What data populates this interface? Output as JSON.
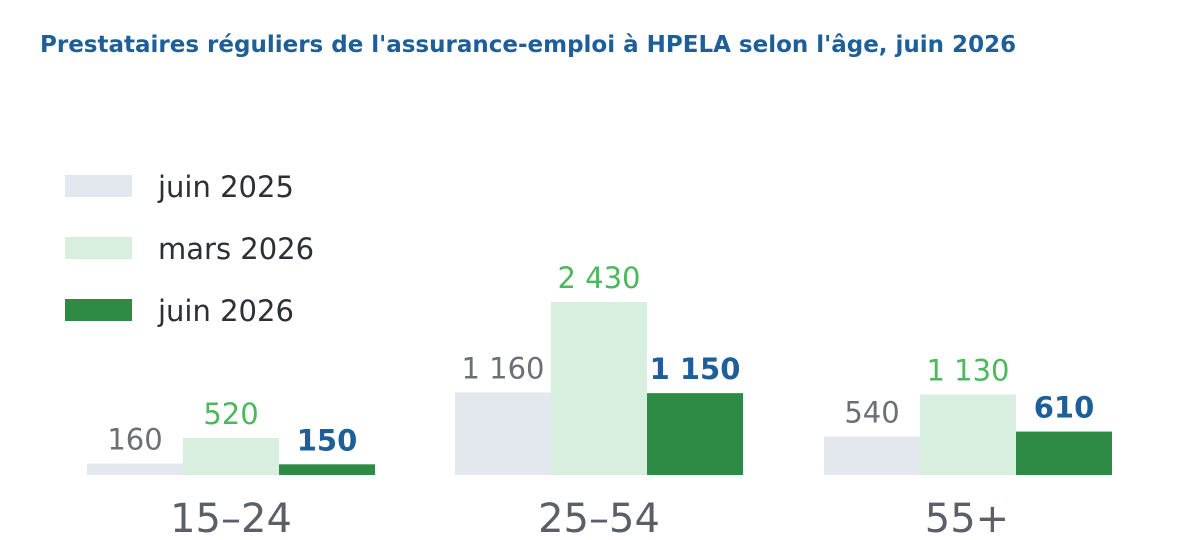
{
  "chart_data": {
    "type": "bar",
    "title": "Prestataires réguliers de l'assurance-emploi à HPELA selon l'âge, juin 2026",
    "categories": [
      "15–24",
      "25–54",
      "55+"
    ],
    "series": [
      {
        "name": "juin 2025",
        "values": [
          160,
          1160,
          540
        ],
        "labels": [
          "160",
          "1 160",
          "540"
        ],
        "color": "#e3e8ef",
        "label_color": "#6b6f76",
        "label_bold": false
      },
      {
        "name": "mars 2026",
        "values": [
          520,
          2430,
          1130
        ],
        "labels": [
          "520",
          "2 430",
          "1 130"
        ],
        "color": "#d8efe0",
        "label_color": "#4cb85c",
        "label_bold": false
      },
      {
        "name": "juin 2026",
        "values": [
          150,
          1150,
          610
        ],
        "labels": [
          "150",
          "1 150",
          "610"
        ],
        "color": "#2e8b45",
        "label_color": "#1f5f99",
        "label_bold": true
      }
    ],
    "legend_position": "top-left",
    "grid": false,
    "ylim": [
      0,
      2430
    ]
  }
}
